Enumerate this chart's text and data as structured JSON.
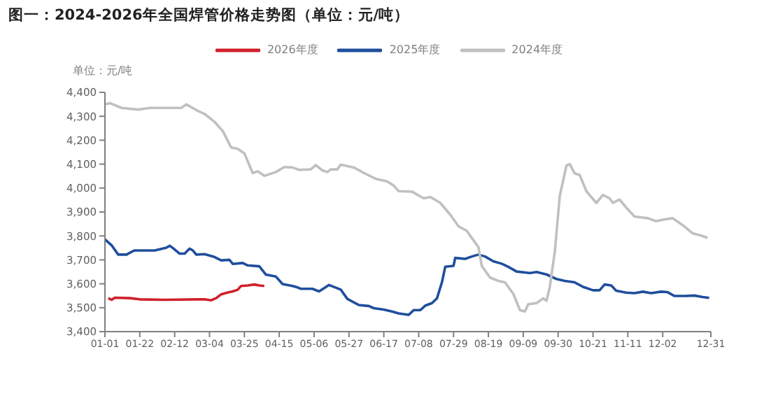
{
  "chart_data": {
    "type": "line",
    "title": "图一：2024-2026年全国焊管价格走势图（单位：元/吨）",
    "ylabel": "单位：元/吨",
    "legend": "top",
    "marker": "none",
    "xlim": [
      "--01-01",
      "--12-31"
    ],
    "xticks": [
      {
        "value": "--01-01",
        "label": "01-01"
      },
      {
        "value": "--01-22",
        "label": "01-22"
      },
      {
        "value": "--02-12",
        "label": "02-12"
      },
      {
        "value": "--03-04",
        "label": "03-04"
      },
      {
        "value": "--03-25",
        "label": "03-25"
      },
      {
        "value": "--04-15",
        "label": "04-15"
      },
      {
        "value": "--05-06",
        "label": "05-06"
      },
      {
        "value": "--05-27",
        "label": "05-27"
      },
      {
        "value": "--06-17",
        "label": "06-17"
      },
      {
        "value": "--07-08",
        "label": "07-08"
      },
      {
        "value": "--07-29",
        "label": "07-29"
      },
      {
        "value": "--08-19",
        "label": "08-19"
      },
      {
        "value": "--09-09",
        "label": "09-09"
      },
      {
        "value": "--09-30",
        "label": "09-30"
      },
      {
        "value": "--10-21",
        "label": "10-21"
      },
      {
        "value": "--11-11",
        "label": "11-11"
      },
      {
        "value": "--12-02",
        "label": "12-02"
      },
      {
        "value": "--12-31",
        "label": "12-31"
      }
    ],
    "ylim": [
      3400,
      4400
    ],
    "yticks": [
      {
        "value": 3400,
        "label": "3,400"
      },
      {
        "value": 3500,
        "label": "3,500"
      },
      {
        "value": 3600,
        "label": "3,600"
      },
      {
        "value": 3700,
        "label": "3,700"
      },
      {
        "value": 3800,
        "label": "3,800"
      },
      {
        "value": 3900,
        "label": "3,900"
      },
      {
        "value": 4000,
        "label": "4,000"
      },
      {
        "value": 4100,
        "label": "4,100"
      },
      {
        "value": 4200,
        "label": "4,200"
      },
      {
        "value": 4300,
        "label": "4,300"
      },
      {
        "value": 4400,
        "label": "4,400"
      }
    ],
    "series": [
      {
        "name": "2026年度",
        "color": "#d0202a",
        "x": [
          "--01-03",
          "--01-05",
          "--01-07",
          "--01-16",
          "--01-22",
          "--02-05",
          "--02-25",
          "--03-01",
          "--03-05",
          "--03-08",
          "--03-11",
          "--03-15",
          "--03-18",
          "--03-21",
          "--03-23",
          "--03-27",
          "--03-31",
          "--04-03",
          "--04-06"
        ],
        "values": [
          3540,
          3533,
          3542,
          3540,
          3535,
          3533,
          3535,
          3535,
          3531,
          3540,
          3556,
          3564,
          3568,
          3575,
          3591,
          3593,
          3597,
          3593,
          3591
        ]
      },
      {
        "name": "2025年度",
        "color": "#1f4e9c",
        "x": [
          "--01-01",
          "--01-05",
          "--01-09",
          "--01-14",
          "--01-18",
          "--01-19",
          "--01-31",
          "--02-07",
          "--02-09",
          "--02-11",
          "--02-15",
          "--02-18",
          "--02-21",
          "--02-23",
          "--02-25",
          "--03-01",
          "--03-07",
          "--03-11",
          "--03-16",
          "--03-18",
          "--03-24",
          "--03-27",
          "--04-03",
          "--04-07",
          "--04-13",
          "--04-17",
          "--04-23",
          "--04-26",
          "--04-28",
          "--05-05",
          "--05-09",
          "--05-15",
          "--05-22",
          "--05-26",
          "--06-02",
          "--06-08",
          "--06-11",
          "--06-17",
          "--06-22",
          "--06-26",
          "--07-02",
          "--07-05",
          "--07-09",
          "--07-12",
          "--07-16",
          "--07-19",
          "--07-22",
          "--07-24",
          "--07-29",
          "--07-30",
          "--08-05",
          "--08-09",
          "--08-13",
          "--08-17",
          "--08-22",
          "--08-27",
          "--08-31",
          "--09-05",
          "--09-13",
          "--09-17",
          "--09-23",
          "--09-29",
          "--10-04",
          "--10-10",
          "--10-15",
          "--10-21",
          "--10-25",
          "--10-28",
          "--11-01",
          "--11-04",
          "--11-10",
          "--11-15",
          "--11-20",
          "--11-25",
          "--12-01",
          "--12-05",
          "--12-09",
          "--12-16",
          "--12-21",
          "--12-26",
          "--12-30"
        ],
        "values": [
          3786,
          3761,
          3722,
          3722,
          3737,
          3739,
          3739,
          3751,
          3759,
          3749,
          3726,
          3726,
          3747,
          3739,
          3722,
          3724,
          3712,
          3698,
          3700,
          3683,
          3687,
          3677,
          3673,
          3638,
          3630,
          3599,
          3591,
          3585,
          3579,
          3579,
          3568,
          3595,
          3576,
          3537,
          3511,
          3507,
          3498,
          3492,
          3484,
          3476,
          3470,
          3490,
          3490,
          3509,
          3519,
          3539,
          3606,
          3671,
          3675,
          3708,
          3704,
          3714,
          3722,
          3714,
          3694,
          3684,
          3671,
          3651,
          3645,
          3649,
          3639,
          3620,
          3612,
          3606,
          3587,
          3573,
          3573,
          3597,
          3593,
          3571,
          3563,
          3561,
          3567,
          3561,
          3567,
          3565,
          3549,
          3549,
          3551,
          3545,
          3541
        ]
      },
      {
        "name": "2024年度",
        "color": "#c0c0c0",
        "x": [
          "--01-01",
          "--01-04",
          "--01-11",
          "--01-21",
          "--01-28",
          "--02-16",
          "--02-19",
          "--02-25",
          "--03-01",
          "--03-07",
          "--03-12",
          "--03-17",
          "--03-21",
          "--03-25",
          "--03-30",
          "--04-02",
          "--04-06",
          "--04-13",
          "--04-18",
          "--04-23",
          "--04-27",
          "--05-04",
          "--05-07",
          "--05-11",
          "--05-14",
          "--05-16",
          "--05-20",
          "--05-22",
          "--05-30",
          "--06-05",
          "--06-12",
          "--06-19",
          "--06-23",
          "--06-26",
          "--07-04",
          "--07-11",
          "--07-15",
          "--07-21",
          "--07-27",
          "--08-01",
          "--08-06",
          "--08-10",
          "--08-13",
          "--08-15",
          "--08-20",
          "--08-25",
          "--08-29",
          "--09-03",
          "--09-07",
          "--09-10",
          "--09-12",
          "--09-17",
          "--09-21",
          "--09-23",
          "--09-25",
          "--09-28",
          "--10-01",
          "--10-05",
          "--10-07",
          "--10-10",
          "--10-13",
          "--10-17",
          "--10-23",
          "--10-27",
          "--10-31",
          "--11-02",
          "--11-06",
          "--11-10",
          "--11-15",
          "--11-23",
          "--11-28",
          "--12-04",
          "--12-08",
          "--12-15",
          "--12-20",
          "--12-25",
          "--12-29"
        ],
        "values": [
          4350,
          4355,
          4335,
          4328,
          4335,
          4335,
          4350,
          4326,
          4310,
          4277,
          4238,
          4170,
          4164,
          4145,
          4063,
          4070,
          4051,
          4067,
          4088,
          4086,
          4076,
          4078,
          4096,
          4074,
          4067,
          4078,
          4078,
          4098,
          4086,
          4063,
          4039,
          4028,
          4010,
          3987,
          3985,
          3957,
          3963,
          3938,
          3889,
          3840,
          3821,
          3782,
          3753,
          3675,
          3626,
          3612,
          3606,
          3558,
          3490,
          3484,
          3515,
          3519,
          3539,
          3529,
          3587,
          3733,
          3967,
          4094,
          4100,
          4061,
          4055,
          3987,
          3938,
          3971,
          3957,
          3938,
          3952,
          3919,
          3881,
          3874,
          3862,
          3870,
          3874,
          3840,
          3811,
          3802,
          3792
        ]
      }
    ]
  }
}
